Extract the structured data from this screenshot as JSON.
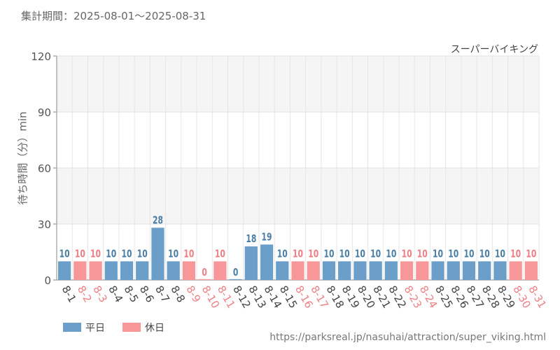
{
  "period_label": "集計期間：2025-08-01～2025-08-31",
  "source_url": "https://parksreal.jp/nasuhai/attraction/super_viking.html",
  "colors": {
    "weekday": "#6b9ec8",
    "holiday": "#f7979a",
    "weekday_label": "#4a7ea6",
    "holiday_label": "#ee7f84",
    "band": "#f5f5f5"
  },
  "chart_data": {
    "type": "bar",
    "title": "スーパーバイキング",
    "xlabel": "",
    "ylabel": "待ち時間（分）min",
    "ylim": [
      0,
      120
    ],
    "yticks": [
      0,
      30,
      60,
      90,
      120
    ],
    "grid": true,
    "legend_position": "bottom-left",
    "legend": [
      {
        "label": "平日",
        "kind": "weekday"
      },
      {
        "label": "休日",
        "kind": "holiday"
      }
    ],
    "categories": [
      "8-1",
      "8-2",
      "8-3",
      "8-4",
      "8-5",
      "8-6",
      "8-7",
      "8-8",
      "8-9",
      "8-10",
      "8-11",
      "8-12",
      "8-13",
      "8-14",
      "8-15",
      "8-16",
      "8-17",
      "8-18",
      "8-19",
      "8-20",
      "8-21",
      "8-22",
      "8-23",
      "8-24",
      "8-25",
      "8-26",
      "8-27",
      "8-28",
      "8-29",
      "8-30",
      "8-31"
    ],
    "values": [
      10,
      10,
      10,
      10,
      10,
      10,
      28,
      10,
      10,
      0,
      10,
      0,
      18,
      19,
      10,
      10,
      10,
      10,
      10,
      10,
      10,
      10,
      10,
      10,
      10,
      10,
      10,
      10,
      10,
      10,
      10
    ],
    "day_type": [
      "weekday",
      "holiday",
      "holiday",
      "weekday",
      "weekday",
      "weekday",
      "weekday",
      "weekday",
      "holiday",
      "holiday",
      "holiday",
      "weekday",
      "weekday",
      "weekday",
      "weekday",
      "holiday",
      "holiday",
      "weekday",
      "weekday",
      "weekday",
      "weekday",
      "weekday",
      "holiday",
      "holiday",
      "weekday",
      "weekday",
      "weekday",
      "weekday",
      "weekday",
      "holiday",
      "holiday"
    ]
  }
}
